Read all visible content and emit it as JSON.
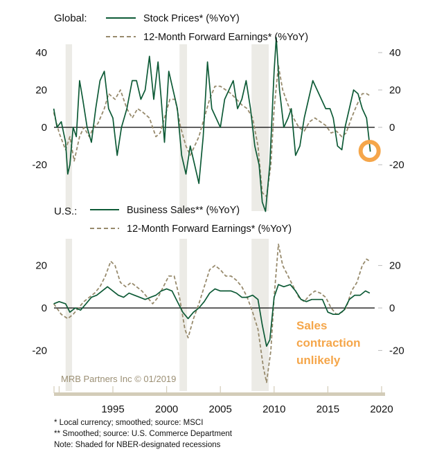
{
  "colors": {
    "stock": "#0d5a36",
    "earnings": "#978a6c",
    "recession": "#ecebe6",
    "highlight": "#f5a64a",
    "axis": "#d3ccb8"
  },
  "watermark": "MRB Partners Inc © 01/2019",
  "footnotes": [
    "*  Local currency; smoothed; source: MSCI",
    "** Smoothed; source: U.S. Commerce Department",
    "Note: Shaded for NBER-designated recessions"
  ],
  "annotation": [
    "Sales",
    "contraction",
    "unlikely"
  ],
  "chart_data": [
    {
      "type": "line",
      "panel_label": "Global:",
      "xlim": [
        1989.5,
        2020.2
      ],
      "ylim": [
        -45,
        48
      ],
      "yticks": [
        "40",
        "20",
        "0",
        "-20"
      ],
      "ytick_values": [
        40,
        20,
        0,
        -20
      ],
      "xticks": [
        "1995",
        "2000",
        "2005",
        "2010",
        "2015",
        "2020"
      ],
      "recessions": [
        [
          1990.6,
          1991.2
        ],
        [
          2001.2,
          2001.9
        ],
        [
          2007.9,
          2009.5
        ]
      ],
      "highlight_point": [
        2018.95,
        -13
      ],
      "series": [
        {
          "name": "Stock Prices* (%YoY)",
          "style": "solid",
          "x": [
            1989.5,
            1989.8,
            1990.2,
            1990.6,
            1990.8,
            1991.0,
            1991.3,
            1991.6,
            1991.9,
            1992.2,
            1992.6,
            1993.0,
            1993.4,
            1993.8,
            1994.2,
            1994.6,
            1995.0,
            1995.4,
            1995.8,
            1996.3,
            1996.8,
            1997.2,
            1997.6,
            1998.0,
            1998.4,
            1998.8,
            1999.2,
            1999.5,
            1999.8,
            2000.2,
            2000.6,
            2001.0,
            2001.4,
            2001.8,
            2002.2,
            2002.6,
            2003.0,
            2003.4,
            2003.8,
            2004.2,
            2004.6,
            2005.0,
            2005.4,
            2005.8,
            2006.2,
            2006.6,
            2007.0,
            2007.4,
            2007.8,
            2008.2,
            2008.6,
            2008.9,
            2009.2,
            2009.6,
            2010.0,
            2010.2,
            2010.5,
            2010.9,
            2011.3,
            2011.6,
            2012.0,
            2012.4,
            2012.8,
            2013.2,
            2013.6,
            2014.0,
            2014.4,
            2014.8,
            2015.2,
            2015.5,
            2015.9,
            2016.3,
            2016.6,
            2017.0,
            2017.4,
            2017.8,
            2018.2,
            2018.6,
            2018.8,
            2018.95
          ],
          "y": [
            10,
            0,
            3,
            -8,
            -25,
            -20,
            0,
            -5,
            25,
            15,
            0,
            -8,
            10,
            25,
            30,
            10,
            5,
            -15,
            0,
            10,
            25,
            25,
            15,
            20,
            38,
            15,
            35,
            15,
            -8,
            30,
            20,
            10,
            -15,
            -25,
            -10,
            -20,
            -30,
            -5,
            35,
            10,
            5,
            0,
            15,
            20,
            25,
            10,
            15,
            25,
            10,
            -10,
            -20,
            -40,
            -45,
            -20,
            30,
            48,
            20,
            0,
            5,
            10,
            -15,
            -10,
            5,
            15,
            25,
            20,
            15,
            10,
            10,
            5,
            -10,
            -12,
            0,
            10,
            20,
            18,
            10,
            5,
            -5,
            -13
          ]
        },
        {
          "name": "12-Month Forward Earnings* (%YoY)",
          "style": "dashed",
          "x": [
            1989.5,
            1990.0,
            1990.6,
            1991.0,
            1991.4,
            1991.9,
            1992.3,
            1992.8,
            1993.2,
            1993.6,
            1994.2,
            1994.6,
            1995.2,
            1995.7,
            1996.3,
            1996.8,
            1997.3,
            1997.8,
            1998.4,
            1999.0,
            1999.4,
            1999.8,
            2000.3,
            2000.8,
            2001.3,
            2001.8,
            2002.2,
            2002.6,
            2003.0,
            2003.5,
            2004.0,
            2004.5,
            2005.0,
            2005.5,
            2006.0,
            2006.5,
            2007.0,
            2007.5,
            2008.0,
            2008.5,
            2008.9,
            2009.3,
            2009.7,
            2010.0,
            2010.4,
            2010.8,
            2011.3,
            2011.8,
            2012.3,
            2012.8,
            2013.3,
            2013.8,
            2014.3,
            2014.8,
            2015.3,
            2015.8,
            2016.3,
            2016.7,
            2017.2,
            2017.7,
            2018.2,
            2018.6,
            2018.9
          ],
          "y": [
            8,
            -3,
            -12,
            -5,
            -18,
            -5,
            0,
            -5,
            0,
            2,
            10,
            18,
            15,
            20,
            10,
            5,
            10,
            8,
            5,
            -5,
            -3,
            5,
            15,
            15,
            0,
            -10,
            -15,
            -10,
            -5,
            5,
            15,
            22,
            22,
            20,
            18,
            15,
            12,
            10,
            5,
            -10,
            -35,
            -37,
            -20,
            10,
            33,
            20,
            12,
            5,
            0,
            -2,
            3,
            5,
            3,
            1,
            -3,
            -2,
            -5,
            -3,
            5,
            12,
            18,
            18,
            17
          ]
        }
      ]
    },
    {
      "type": "line",
      "panel_label": "U.S.:",
      "xlim": [
        1989.5,
        2020.2
      ],
      "ylim": [
        -36,
        36
      ],
      "yticks": [
        "20",
        "0",
        "-20"
      ],
      "ytick_values": [
        20,
        0,
        -20
      ],
      "xticks": [
        "1995",
        "2000",
        "2005",
        "2010",
        "2015",
        "2020"
      ],
      "recessions": [
        [
          1990.6,
          1991.2
        ],
        [
          2001.2,
          2001.9
        ],
        [
          2007.9,
          2009.5
        ]
      ],
      "series": [
        {
          "name": "Business Sales** (%YoY)",
          "style": "solid",
          "x": [
            1989.5,
            1990.0,
            1990.6,
            1991.0,
            1991.5,
            1992.0,
            1992.5,
            1993.0,
            1993.5,
            1994.0,
            1994.5,
            1995.0,
            1995.5,
            1996.0,
            1996.5,
            1997.0,
            1997.5,
            1998.0,
            1998.5,
            1999.0,
            1999.5,
            2000.0,
            2000.5,
            2001.0,
            2001.5,
            2002.0,
            2002.5,
            2003.0,
            2003.5,
            2004.0,
            2004.5,
            2005.0,
            2005.5,
            2006.0,
            2006.5,
            2007.0,
            2007.5,
            2008.0,
            2008.5,
            2008.9,
            2009.3,
            2009.6,
            2010.0,
            2010.4,
            2010.9,
            2011.5,
            2012.0,
            2012.5,
            2013.0,
            2013.5,
            2014.0,
            2014.5,
            2015.0,
            2015.5,
            2016.0,
            2016.5,
            2017.0,
            2017.5,
            2018.0,
            2018.5,
            2018.9
          ],
          "y": [
            2,
            3,
            2,
            -2,
            0,
            -1,
            2,
            5,
            6,
            8,
            10,
            8,
            6,
            5,
            7,
            6,
            5,
            4,
            5,
            6,
            8,
            9,
            8,
            3,
            -2,
            -5,
            -2,
            0,
            3,
            7,
            9,
            8,
            8,
            8,
            7,
            5,
            5,
            6,
            4,
            -8,
            -18,
            -15,
            5,
            11,
            10,
            11,
            8,
            4,
            3,
            4,
            4,
            4,
            -2,
            -3,
            -3,
            -1,
            4,
            6,
            6,
            8,
            7
          ]
        },
        {
          "name": "12-Month Forward Earnings* (%YoY)",
          "style": "dashed",
          "x": [
            1989.5,
            1990.2,
            1990.8,
            1991.3,
            1991.8,
            1992.3,
            1992.8,
            1993.3,
            1993.8,
            1994.3,
            1994.8,
            1995.2,
            1995.7,
            1996.2,
            1996.7,
            1997.2,
            1997.7,
            1998.2,
            1998.7,
            1999.2,
            1999.7,
            2000.2,
            2000.7,
            2001.2,
            2001.7,
            2002.0,
            2002.5,
            2003.0,
            2003.5,
            2004.0,
            2004.5,
            2005.0,
            2005.5,
            2006.0,
            2006.5,
            2007.0,
            2007.5,
            2008.0,
            2008.5,
            2009.0,
            2009.3,
            2009.7,
            2010.0,
            2010.4,
            2010.8,
            2011.3,
            2011.8,
            2012.3,
            2012.8,
            2013.3,
            2013.8,
            2014.3,
            2014.8,
            2015.3,
            2015.8,
            2016.3,
            2016.7,
            2017.2,
            2017.7,
            2018.2,
            2018.6,
            2018.9
          ],
          "y": [
            2,
            -3,
            -5,
            -3,
            0,
            3,
            5,
            7,
            10,
            15,
            22,
            20,
            12,
            10,
            12,
            10,
            8,
            5,
            2,
            5,
            10,
            15,
            15,
            5,
            -10,
            -14,
            -5,
            2,
            10,
            18,
            20,
            18,
            15,
            15,
            13,
            10,
            5,
            -2,
            -10,
            -28,
            -35,
            -20,
            5,
            30,
            20,
            15,
            10,
            5,
            3,
            6,
            8,
            7,
            5,
            0,
            -3,
            -2,
            0,
            8,
            12,
            20,
            23,
            22
          ]
        }
      ]
    }
  ]
}
